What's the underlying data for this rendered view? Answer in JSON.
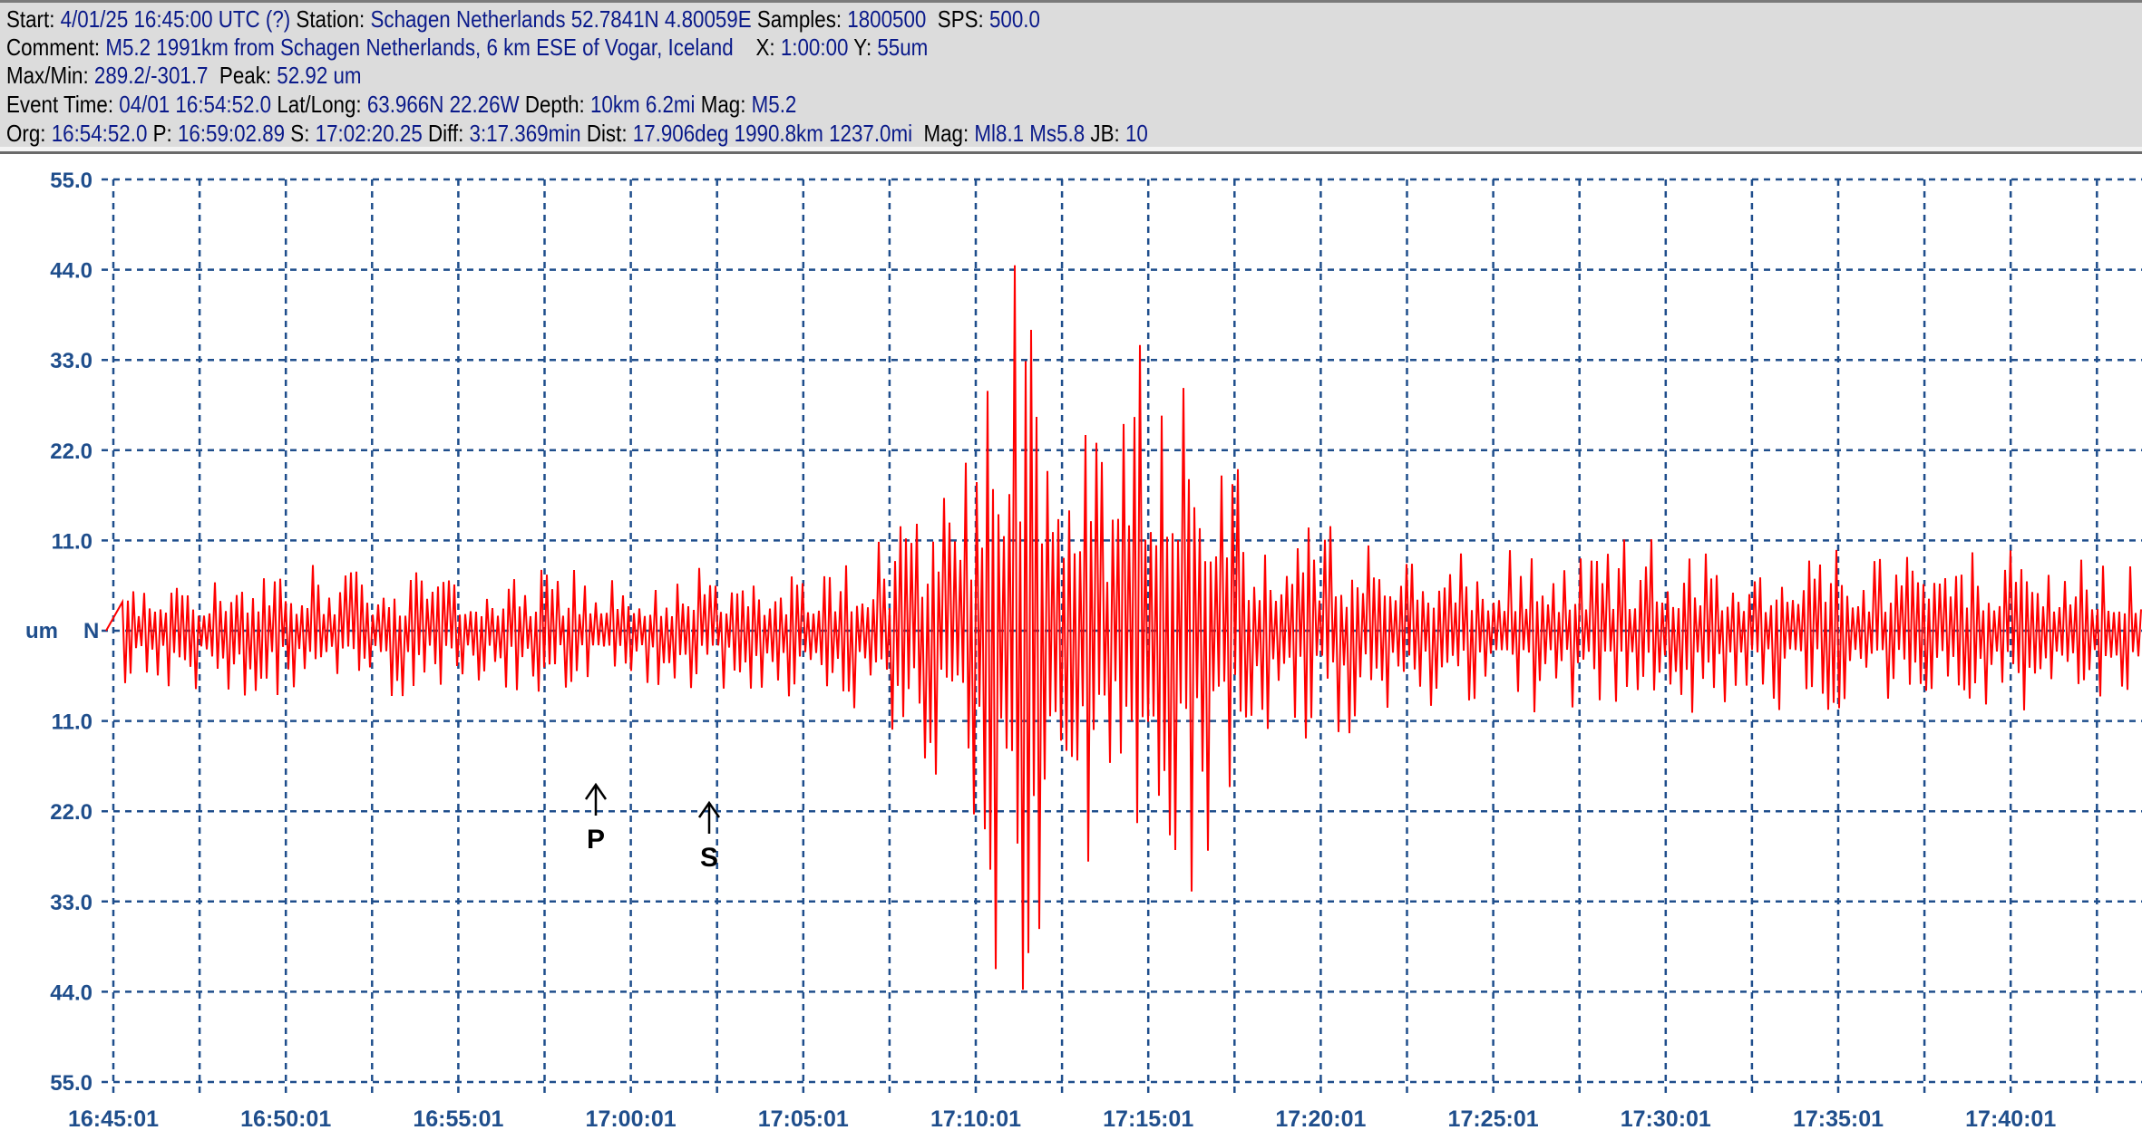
{
  "header": {
    "line1": {
      "start_label": "Start: ",
      "start": "4/01/25 16:45:00 UTC (?)",
      "station_label": " Station: ",
      "station": "Schagen Netherlands 52.7841N 4.80059E",
      "samples_label": " Samples: ",
      "samples": "1800500",
      "sps_label": "  SPS: ",
      "sps": "500.0"
    },
    "line2": {
      "comment_label": "Comment: ",
      "comment": "M5.2 1991km from Schagen Netherlands, 6 km ESE of Vogar, Iceland",
      "x_label": "    X: ",
      "x": "1:00:00",
      "y_label": " Y: ",
      "y": "55um"
    },
    "line3": {
      "maxmin_label": "Max/Min: ",
      "maxmin": "289.2/-301.7",
      "peak_label": "  Peak: ",
      "peak": "52.92 um"
    },
    "line4": {
      "event_label": "Event Time: ",
      "event": "04/01 16:54:52.0",
      "latlong_label": " Lat/Long: ",
      "latlong": "63.966N 22.26W",
      "depth_label": " Depth: ",
      "depth": "10km 6.2mi",
      "mag_label": " Mag: ",
      "mag": "M5.2"
    },
    "line5": {
      "org_label": "Org: ",
      "org": "16:54:52.0",
      "p_label": " P: ",
      "p": "16:59:02.89",
      "s_label": " S: ",
      "s": "17:02:20.25",
      "diff_label": " Diff: ",
      "diff": "3:17.369min",
      "dist_label": " Dist: ",
      "dist": "17.906deg 1990.8km 1237.0mi",
      "mag_label": "  Mag: ",
      "mag": "Ml8.1 Ms5.8",
      "jb_label": " JB: ",
      "jb": "10"
    }
  },
  "chart_data": {
    "type": "line",
    "title": "",
    "ylabel": "um",
    "channel": "N",
    "ylim": [
      -55,
      55
    ],
    "y_ticks": [
      "55.0",
      "44.0",
      "33.0",
      "22.0",
      "11.0",
      "11.0",
      "22.0",
      "33.0",
      "44.0",
      "55.0"
    ],
    "x_ticks": [
      "16:45:01",
      "16:50:01",
      "16:55:01",
      "17:00:01",
      "17:05:01",
      "17:10:01",
      "17:15:01",
      "17:20:01",
      "17:25:01",
      "17:30:01",
      "17:35:01",
      "17:40:01"
    ],
    "xlim_minutes_from_start": [
      0,
      58.6
    ],
    "grid": true,
    "series_color": "#ff0000",
    "grid_color": "#1f4e8c",
    "amplitude_envelope": {
      "minutes": [
        0,
        4,
        10,
        14,
        17,
        20,
        21,
        22,
        23,
        24,
        25,
        26,
        27,
        28,
        29,
        29.5,
        30,
        31,
        32,
        33,
        35,
        38,
        42,
        45,
        48,
        52,
        55,
        58.6
      ],
      "peak_um": [
        6,
        8,
        7,
        7,
        7,
        8,
        9,
        10,
        12,
        18,
        25,
        48,
        42,
        30,
        22,
        40,
        43,
        35,
        25,
        14,
        12,
        10,
        9,
        11,
        9,
        9,
        10,
        8
      ]
    },
    "markers": [
      {
        "label": "P",
        "time": "16:59:02.89"
      },
      {
        "label": "S",
        "time": "17:02:20.25"
      }
    ]
  }
}
